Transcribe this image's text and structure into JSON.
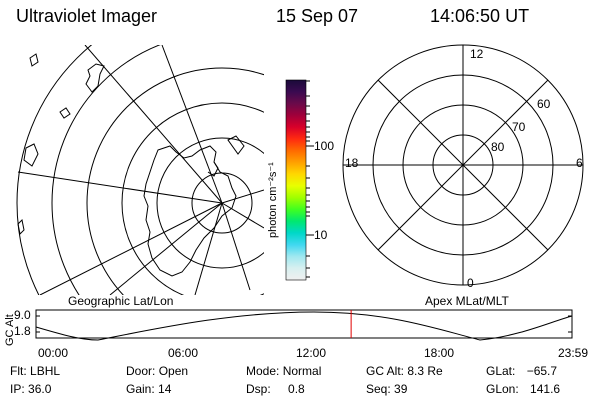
{
  "header": {
    "instrument": "Ultraviolet Imager",
    "date": "15 Sep 07",
    "time": "14:06:50 UT"
  },
  "panels": {
    "geographic_label": "Geographic Lat/Lon",
    "apex_label": "Apex MLat/MLT"
  },
  "colorbar": {
    "unit_label": "photon cm⁻²s⁻¹",
    "ticks": [
      "100",
      "10"
    ],
    "scale": "log",
    "colors": [
      "#1a0a3a",
      "#3a0a50",
      "#6a0a4a",
      "#a0003a",
      "#d8002a",
      "#ff2a10",
      "#ff6a00",
      "#ffa000",
      "#ffd800",
      "#e8ff00",
      "#a0ff00",
      "#40ff20",
      "#00e870",
      "#00d8c8",
      "#40d8f0",
      "#a0e8f0",
      "#d8f0f0",
      "#f0f0f0"
    ]
  },
  "apex_grid": {
    "mlt_labels": {
      "top": "12",
      "left": "18",
      "right": "6",
      "bottom": "0"
    },
    "lat_labels": [
      "60",
      "70",
      "80"
    ]
  },
  "altitude_plot": {
    "ylabel": "GC Alt",
    "ytick_top": "9.0",
    "ytick_bottom": "1.8",
    "xticks": [
      "00:00",
      "06:00",
      "12:00",
      "18:00",
      "23:59"
    ],
    "current_time_marker_hours": 14.11,
    "marker_color": "#e00000"
  },
  "info": {
    "flt_label": "Flt:",
    "flt_value": "LBHL",
    "ip_label": "IP:",
    "ip_value": "36.0",
    "door_label": "Door:",
    "door_value": "Open",
    "gain_label": "Gain:",
    "gain_value": "14",
    "mode_label": "Mode:",
    "mode_value": "Normal",
    "dsp_label": "Dsp:",
    "dsp_value": "0.8",
    "gcalt_label": "GC Alt:",
    "gcalt_value": "8.3 Re",
    "seq_label": "Seq:",
    "seq_value": "39",
    "glat_label": "GLat:",
    "glat_value": "−65.7",
    "glon_label": "GLon:",
    "glon_value": "141.6"
  }
}
